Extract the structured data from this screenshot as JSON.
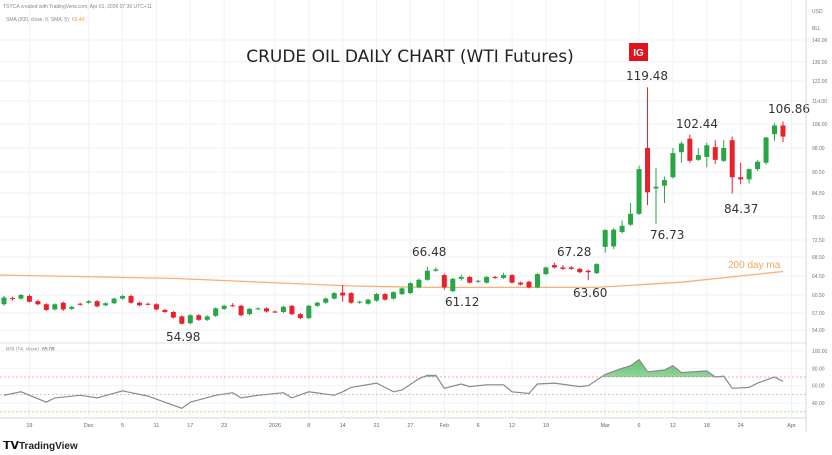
{
  "header": {
    "created_line": "TSYCA created with TradingView.com, Apr 01, 2026 07:36 UTC+11",
    "sma_legend": "SMA (200, close, 0, SMA, 5)",
    "sma_value": "65.44",
    "rsi_legend": "RSI (14, close)",
    "rsi_value": "65.09"
  },
  "branding": {
    "ig_logo": "IG",
    "tradingview": "TradingView",
    "tradingview_icon": "tv-logo-icon"
  },
  "colors": {
    "up": "#26a645",
    "down": "#e8212b",
    "sma": "#f7b07a",
    "rsi": "#8a8a8a",
    "rsi_fill": "#3fb450",
    "ig": "#e2121b"
  },
  "chart_data": {
    "type": "candlestick",
    "title": "CRUDE OIL DAILY CHART (WTI Futures)",
    "currency": "USD",
    "unit": "BLL",
    "yscale": "log",
    "grid": true,
    "y_ticks": [
      "140.00",
      "130.00",
      "122.00",
      "114.00",
      "106.00",
      "98.00",
      "90.50",
      "84.50",
      "78.50",
      "72.50",
      "68.50",
      "64.50",
      "60.50",
      "57.00",
      "54.00"
    ],
    "x_ticks": [
      {
        "label": "19",
        "i": 3
      },
      {
        "label": "Dec",
        "i": 10
      },
      {
        "label": "5",
        "i": 14
      },
      {
        "label": "11",
        "i": 18
      },
      {
        "label": "17",
        "i": 22
      },
      {
        "label": "23",
        "i": 26
      },
      {
        "label": "2026",
        "i": 32
      },
      {
        "label": "8",
        "i": 36
      },
      {
        "label": "14",
        "i": 40
      },
      {
        "label": "21",
        "i": 44
      },
      {
        "label": "27",
        "i": 48
      },
      {
        "label": "Feb",
        "i": 52
      },
      {
        "label": "6",
        "i": 56
      },
      {
        "label": "12",
        "i": 60
      },
      {
        "label": "19",
        "i": 64
      },
      {
        "label": "Mar",
        "i": 71
      },
      {
        "label": "6",
        "i": 75
      },
      {
        "label": "12",
        "i": 79
      },
      {
        "label": "18",
        "i": 83
      },
      {
        "label": "24",
        "i": 87
      },
      {
        "label": "Apr",
        "i": 93
      }
    ],
    "ohlc_fields": [
      "open",
      "high",
      "low",
      "close"
    ],
    "candles": [
      [
        58.7,
        60.3,
        58.4,
        60.0
      ],
      [
        59.9,
        60.2,
        59.4,
        59.7
      ],
      [
        59.8,
        60.7,
        59.6,
        60.5
      ],
      [
        60.3,
        60.6,
        59.0,
        59.2
      ],
      [
        59.3,
        59.6,
        58.5,
        58.7
      ],
      [
        58.7,
        58.9,
        57.4,
        57.6
      ],
      [
        57.7,
        58.9,
        57.5,
        58.7
      ],
      [
        59.0,
        59.2,
        57.4,
        57.7
      ],
      [
        57.8,
        58.4,
        57.6,
        58.2
      ],
      [
        58.8,
        59.0,
        58.4,
        58.6
      ],
      [
        59.0,
        59.5,
        58.8,
        59.3
      ],
      [
        59.3,
        59.5,
        58.1,
        58.3
      ],
      [
        58.5,
        59.1,
        58.3,
        58.9
      ],
      [
        58.9,
        60.0,
        58.7,
        59.8
      ],
      [
        59.8,
        60.5,
        59.6,
        60.3
      ],
      [
        60.3,
        60.6,
        58.8,
        59.0
      ],
      [
        59.0,
        59.2,
        58.3,
        58.5
      ],
      [
        58.8,
        59.0,
        58.5,
        58.6
      ],
      [
        58.7,
        58.9,
        57.5,
        57.7
      ],
      [
        57.6,
        57.8,
        57.0,
        57.2
      ],
      [
        57.2,
        57.4,
        56.0,
        56.2
      ],
      [
        56.4,
        56.6,
        54.98,
        55.1
      ],
      [
        55.2,
        56.8,
        55.0,
        56.6
      ],
      [
        56.6,
        56.8,
        55.6,
        55.8
      ],
      [
        55.8,
        56.6,
        55.6,
        56.4
      ],
      [
        56.5,
        58.1,
        56.3,
        57.9
      ],
      [
        57.8,
        58.6,
        57.6,
        58.4
      ],
      [
        58.5,
        58.9,
        58.2,
        58.3
      ],
      [
        58.4,
        58.6,
        56.4,
        56.6
      ],
      [
        56.8,
        58.0,
        56.6,
        57.8
      ],
      [
        57.8,
        58.1,
        57.6,
        57.9
      ],
      [
        57.9,
        58.1,
        57.1,
        57.3
      ],
      [
        57.3,
        57.5,
        57.0,
        57.1
      ],
      [
        57.2,
        58.4,
        57.0,
        58.2
      ],
      [
        58.4,
        58.6,
        56.6,
        56.8
      ],
      [
        56.8,
        57.0,
        55.9,
        56.1
      ],
      [
        56.1,
        58.6,
        55.9,
        58.4
      ],
      [
        58.4,
        59.2,
        58.2,
        59.0
      ],
      [
        59.0,
        60.0,
        58.8,
        59.8
      ],
      [
        59.8,
        61.1,
        59.6,
        60.9
      ],
      [
        61.0,
        62.6,
        59.2,
        60.4
      ],
      [
        60.9,
        61.1,
        58.8,
        59.0
      ],
      [
        59.0,
        59.4,
        58.8,
        59.2
      ],
      [
        58.8,
        59.8,
        58.6,
        59.6
      ],
      [
        59.4,
        60.9,
        59.2,
        60.7
      ],
      [
        60.7,
        60.9,
        59.4,
        59.6
      ],
      [
        59.8,
        61.3,
        59.6,
        61.1
      ],
      [
        60.7,
        62.1,
        60.5,
        61.9
      ],
      [
        60.9,
        63.2,
        60.7,
        63.0
      ],
      [
        62.1,
        64.0,
        61.9,
        63.7
      ],
      [
        63.7,
        66.48,
        63.5,
        65.6
      ],
      [
        65.6,
        66.3,
        65.4,
        65.9
      ],
      [
        64.7,
        65.0,
        61.6,
        62.1
      ],
      [
        61.3,
        64.1,
        61.12,
        63.9
      ],
      [
        63.9,
        64.8,
        63.5,
        64.3
      ],
      [
        64.3,
        64.5,
        62.9,
        63.1
      ],
      [
        63.3,
        63.7,
        63.0,
        63.5
      ],
      [
        63.1,
        64.5,
        62.9,
        64.3
      ],
      [
        64.3,
        64.5,
        63.9,
        64.1
      ],
      [
        64.1,
        65.2,
        63.9,
        64.7
      ],
      [
        64.7,
        64.9,
        62.9,
        63.1
      ],
      [
        63.1,
        63.3,
        62.5,
        62.7
      ],
      [
        63.3,
        63.5,
        61.9,
        62.1
      ],
      [
        62.1,
        65.1,
        61.9,
        64.9
      ],
      [
        64.9,
        66.5,
        64.7,
        66.3
      ],
      [
        66.8,
        67.28,
        66.1,
        66.3
      ],
      [
        66.3,
        66.8,
        65.8,
        66.0
      ],
      [
        66.3,
        66.6,
        65.8,
        66.0
      ],
      [
        66.0,
        66.2,
        65.1,
        65.3
      ],
      [
        65.6,
        65.8,
        63.6,
        65.3
      ],
      [
        65.1,
        67.2,
        64.9,
        67.0
      ],
      [
        70.9,
        75.3,
        69.5,
        75.1
      ],
      [
        71.0,
        75.6,
        70.4,
        75.2
      ],
      [
        74.6,
        77.6,
        74.2,
        76.2
      ],
      [
        76.5,
        82.0,
        76.2,
        79.3
      ],
      [
        79.3,
        92.5,
        79.0,
        91.4
      ],
      [
        98.0,
        119.48,
        81.5,
        84.7
      ],
      [
        85.8,
        91.8,
        76.73,
        86.3
      ],
      [
        86.6,
        89.2,
        82.0,
        88.2
      ],
      [
        89.0,
        98.0,
        88.6,
        96.4
      ],
      [
        96.7,
        100.2,
        93.4,
        99.5
      ],
      [
        101.1,
        102.44,
        93.4,
        94.0
      ],
      [
        94.3,
        98.0,
        94.0,
        95.8
      ],
      [
        95.2,
        99.8,
        92.0,
        98.9
      ],
      [
        98.3,
        100.6,
        93.0,
        94.3
      ],
      [
        94.0,
        100.6,
        93.6,
        98.0
      ],
      [
        100.6,
        101.8,
        84.37,
        89.0
      ],
      [
        89.0,
        93.4,
        87.0,
        88.4
      ],
      [
        88.4,
        91.6,
        87.2,
        91.4
      ],
      [
        91.4,
        94.2,
        90.8,
        93.7
      ],
      [
        93.4,
        101.7,
        92.8,
        101.5
      ],
      [
        102.6,
        106.3,
        100.4,
        105.5
      ],
      [
        105.5,
        106.86,
        100.0,
        101.8
      ]
    ],
    "sma_200": [
      [
        0,
        64.7
      ],
      [
        20,
        64.0
      ],
      [
        41,
        62.4
      ],
      [
        50,
        62.1
      ],
      [
        70,
        62.1
      ],
      [
        80,
        63.2
      ],
      [
        92,
        65.44
      ]
    ],
    "sma_label": "200 day ma",
    "annotations": [
      "119.48",
      "102.44",
      "106.86",
      "84.37",
      "76.73",
      "67.28",
      "63.60",
      "66.48",
      "61.12",
      "54.98"
    ],
    "rsi": {
      "y_ticks": [
        "100.00",
        "80.00",
        "60.00",
        "40.00"
      ],
      "levels": [
        70,
        50,
        30
      ],
      "values": [
        [
          0,
          49
        ],
        [
          2,
          53
        ],
        [
          5,
          41
        ],
        [
          6,
          46
        ],
        [
          9,
          49
        ],
        [
          11,
          46
        ],
        [
          14,
          54
        ],
        [
          17,
          48
        ],
        [
          21,
          34
        ],
        [
          22,
          41
        ],
        [
          25,
          49
        ],
        [
          27,
          52
        ],
        [
          28,
          46
        ],
        [
          30,
          49
        ],
        [
          33,
          52
        ],
        [
          34,
          46
        ],
        [
          36,
          53
        ],
        [
          39,
          49
        ],
        [
          40,
          53
        ],
        [
          41,
          58
        ],
        [
          44,
          63
        ],
        [
          46,
          53
        ],
        [
          47,
          55
        ],
        [
          49,
          68
        ],
        [
          50,
          72
        ],
        [
          51,
          72
        ],
        [
          52,
          57
        ],
        [
          54,
          62
        ],
        [
          55,
          59
        ],
        [
          57,
          61
        ],
        [
          59,
          61
        ],
        [
          60,
          53
        ],
        [
          62,
          51
        ],
        [
          63,
          62
        ],
        [
          65,
          63
        ],
        [
          68,
          59
        ],
        [
          69,
          60
        ],
        [
          71,
          73
        ],
        [
          73,
          80
        ],
        [
          74,
          83
        ],
        [
          75,
          90
        ],
        [
          76,
          76
        ],
        [
          78,
          78
        ],
        [
          79,
          83
        ],
        [
          80,
          75
        ],
        [
          83,
          77
        ],
        [
          84,
          70
        ],
        [
          85,
          71
        ],
        [
          86,
          57
        ],
        [
          88,
          58
        ],
        [
          89,
          63
        ],
        [
          91,
          70
        ],
        [
          92,
          65.09
        ]
      ]
    }
  }
}
